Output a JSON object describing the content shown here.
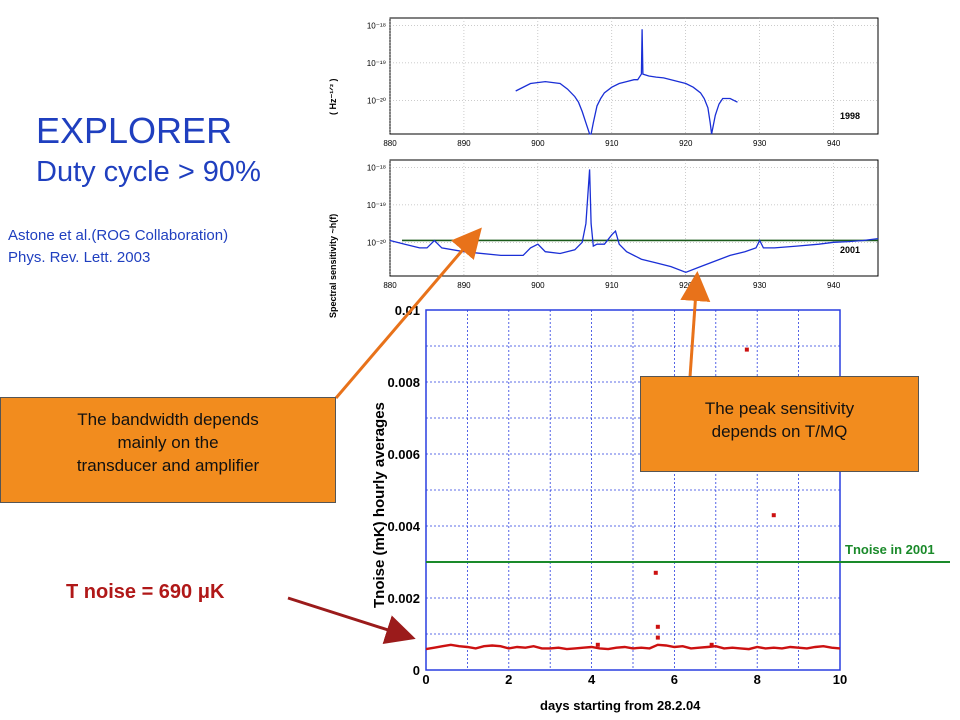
{
  "title": {
    "line1": "EXPLORER",
    "line2": "Duty cycle > 90%"
  },
  "reference": {
    "line1": "Astone et al.(ROG Collaboration)",
    "line2": "Phys. Rev. Lett.  2003"
  },
  "callouts": {
    "bandwidth": [
      "The bandwidth depends",
      "mainly on the",
      "transducer and amplifier"
    ],
    "peak": [
      "The peak sensitivity",
      "depends on T/MQ"
    ]
  },
  "tnoise_label": "T noise = 690 μK",
  "colors": {
    "blue_text": "#1f3fbf",
    "callout": "#f28c1e",
    "arrow_orange": "#e8721a",
    "arrow_red": "#9b1b1b",
    "trace_blue": "#1a2fd6",
    "threshold_green": "#1a8a2a",
    "data_red": "#cc1111"
  },
  "chart_data": [
    {
      "type": "line",
      "legend_text": "1998",
      "ylabel": "( Hz⁻¹ᐟ² )",
      "x_ticks": [
        "880",
        "890",
        "900",
        "910",
        "920",
        "930",
        "940"
      ],
      "y_ticks": [
        "10⁻¹⁸",
        "10⁻¹⁹",
        "10⁻²⁰"
      ],
      "xlim": [
        880,
        946
      ],
      "ylim_exp": [
        -20.9,
        -17.8
      ],
      "log_y": true,
      "grid": true,
      "x": [
        897.0,
        899,
        901,
        903,
        904,
        905,
        905.5,
        906,
        906.5,
        907,
        907.2,
        907.5,
        908,
        908.5,
        909,
        910,
        911,
        912,
        913,
        913.5,
        914,
        914.1,
        914.2,
        915,
        916,
        917,
        918,
        919,
        920,
        921,
        922,
        922.5,
        923,
        923.3,
        923.5,
        924,
        924.5,
        925,
        926,
        927
      ],
      "y_exp": [
        -19.75,
        -19.55,
        -19.5,
        -19.55,
        -19.7,
        -19.9,
        -20.05,
        -20.3,
        -20.6,
        -20.9,
        -20.9,
        -20.6,
        -20.15,
        -19.95,
        -19.8,
        -19.65,
        -19.55,
        -19.5,
        -19.45,
        -19.45,
        -19.3,
        -18.1,
        -19.3,
        -19.35,
        -19.38,
        -19.4,
        -19.45,
        -19.5,
        -19.55,
        -19.65,
        -19.8,
        -19.95,
        -20.2,
        -20.6,
        -20.9,
        -20.4,
        -20.1,
        -19.95,
        -19.95,
        -20.05
      ]
    },
    {
      "type": "line",
      "legend_text": "2001",
      "ylabel": "Spectral sensitivity ~h(f)",
      "x_ticks": [
        "880",
        "890",
        "900",
        "910",
        "920",
        "930",
        "940"
      ],
      "y_ticks": [
        "10⁻¹⁸",
        "10⁻¹⁹",
        "10⁻²⁰"
      ],
      "xlim": [
        880,
        946
      ],
      "ylim_exp": [
        -20.9,
        -17.8
      ],
      "log_y": true,
      "grid": true,
      "threshold_exp": -19.95,
      "x": [
        880,
        882,
        884,
        885,
        886,
        887,
        890,
        895,
        898,
        899,
        900,
        901,
        903,
        905,
        906,
        906.5,
        907,
        907.2,
        907.5,
        908,
        909,
        910,
        910.5,
        911,
        912,
        914,
        916,
        918,
        920,
        922,
        924,
        926,
        928,
        929.5,
        930,
        930.5,
        932,
        935,
        938,
        940,
        942,
        944,
        946
      ],
      "y_exp": [
        -19.95,
        -20.05,
        -20.15,
        -20.15,
        -19.95,
        -20.15,
        -20.25,
        -20.35,
        -20.35,
        -20.15,
        -20.05,
        -20.25,
        -20.3,
        -20.2,
        -20.0,
        -19.5,
        -18.05,
        -19.5,
        -20.1,
        -20.05,
        -20.05,
        -19.8,
        -19.7,
        -20.05,
        -20.25,
        -20.45,
        -20.55,
        -20.65,
        -20.8,
        -20.65,
        -20.5,
        -20.35,
        -20.25,
        -20.15,
        -19.95,
        -20.15,
        -20.15,
        -20.1,
        -20.05,
        -20.0,
        -19.98,
        -19.95,
        -19.9
      ]
    },
    {
      "type": "scatter",
      "title": "",
      "xlabel": "days starting from 28.2.04",
      "ylabel": "Tnoise (mK) hourly averages",
      "x_ticks": [
        "0",
        "2",
        "4",
        "6",
        "8",
        "10"
      ],
      "y_ticks": [
        "0",
        "0.002",
        "0.004",
        "0.006",
        "0.008",
        "0.01"
      ],
      "xlim": [
        0,
        10
      ],
      "ylim": [
        0,
        0.01
      ],
      "grid": true,
      "threshold": {
        "value": 0.003,
        "label": "Tnoise in 2001"
      },
      "series": [
        {
          "x": [
            0,
            0.2,
            0.4,
            0.6,
            0.8,
            1.0,
            1.2,
            1.4,
            1.6,
            1.8,
            2.0,
            2.2,
            2.4,
            2.6,
            2.8,
            3.0,
            3.2,
            3.4,
            3.6,
            3.8,
            4.0,
            4.2,
            4.4,
            4.6,
            4.8,
            5.0,
            5.2,
            5.4,
            5.6,
            5.8,
            6.0,
            6.2,
            6.4,
            6.6,
            6.8,
            7.0,
            7.2,
            7.4,
            7.6,
            7.8,
            8.0,
            8.2,
            8.4,
            8.6,
            8.8,
            9.0,
            9.2,
            9.4,
            9.6,
            9.8,
            10.0
          ],
          "y": [
            0.00058,
            0.00062,
            0.00066,
            0.0007,
            0.00066,
            0.00064,
            0.0006,
            0.00066,
            0.00068,
            0.00066,
            0.0006,
            0.00064,
            0.00062,
            0.00066,
            0.0006,
            0.0006,
            0.00062,
            0.00058,
            0.0006,
            0.00062,
            0.00064,
            0.0006,
            0.00058,
            0.00062,
            0.00064,
            0.0006,
            0.00062,
            0.0006,
            0.0007,
            0.00068,
            0.00064,
            0.00066,
            0.0006,
            0.00062,
            0.00064,
            0.00066,
            0.0006,
            0.00062,
            0.0006,
            0.00058,
            0.00064,
            0.0006,
            0.00062,
            0.0006,
            0.00064,
            0.00062,
            0.0006,
            0.00064,
            0.00066,
            0.00062,
            0.0006
          ]
        },
        {
          "name": "",
          "x": [
            7.75,
            8.4,
            5.55,
            5.6,
            5.6,
            4.15,
            6.9
          ],
          "y": [
            0.0089,
            0.0043,
            0.0027,
            0.0012,
            0.0009,
            0.0007,
            0.0007
          ]
        }
      ]
    }
  ]
}
